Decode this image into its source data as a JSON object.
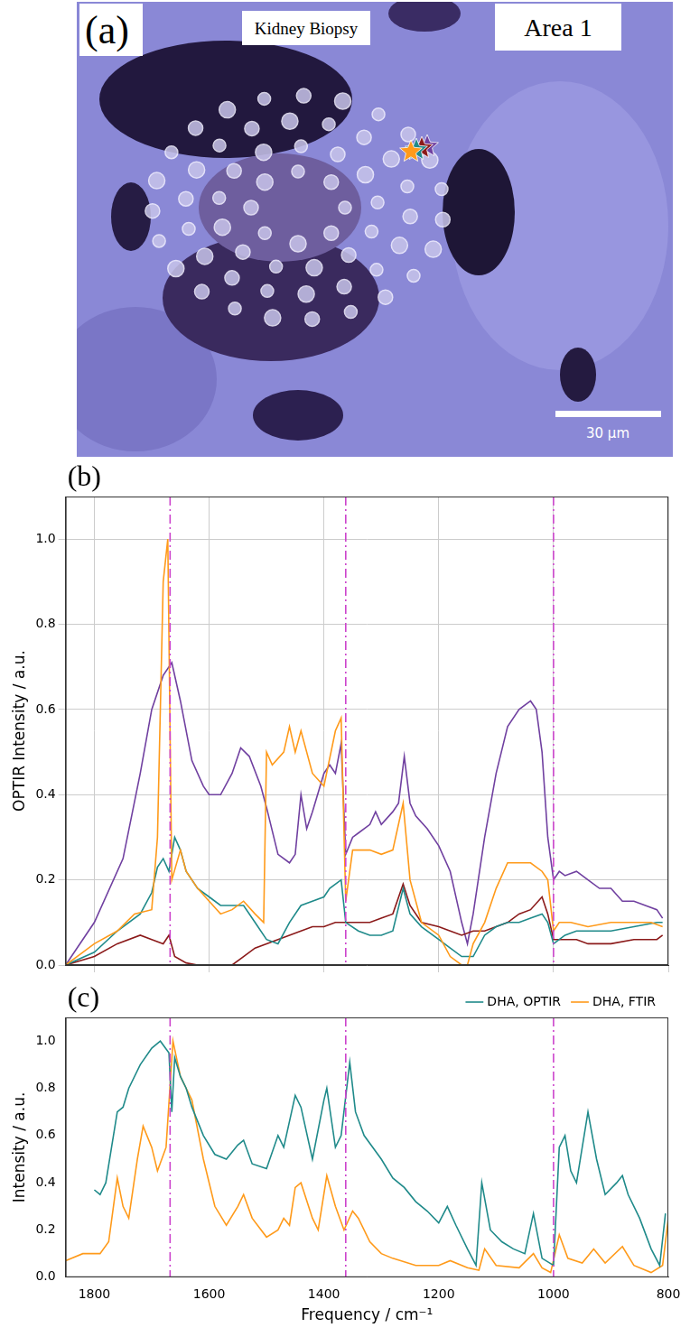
{
  "image_panel": {
    "panel": "(a)",
    "title": "Kidney Biopsy",
    "area": "Area 1",
    "scale_bar": "30 μm"
  },
  "chart_data": [
    {
      "type": "line",
      "panel": "(b)",
      "y_label": "OPTIR Intensity / a.u.",
      "xlim": [
        1850,
        800
      ],
      "xticks": [
        1800,
        1600,
        1400,
        1200,
        1000,
        800
      ],
      "ylim": [
        0,
        1.1
      ],
      "yticks": [
        {
          "value": 0,
          "label": "0.0"
        },
        {
          "value": 0.2,
          "label": "0.2"
        },
        {
          "value": 0.4,
          "label": "0.4"
        },
        {
          "value": 0.6,
          "label": "0.6"
        },
        {
          "value": 0.8,
          "label": "0.8"
        },
        {
          "value": 1,
          "label": "1.0"
        }
      ],
      "grid": true,
      "tick_labels": "y",
      "reference_lines": {
        "x": [
          1668,
          1362,
          1000
        ],
        "color": "#cc44cc",
        "line_style": "dashdot"
      },
      "series": [
        {
          "color": "#ff9a1a",
          "x": [
            1850,
            1820,
            1800,
            1760,
            1730,
            1700,
            1690,
            1680,
            1672,
            1665,
            1650,
            1640,
            1620,
            1600,
            1580,
            1560,
            1540,
            1520,
            1505,
            1500,
            1490,
            1470,
            1460,
            1450,
            1440,
            1420,
            1400,
            1380,
            1370,
            1362,
            1350,
            1320,
            1300,
            1280,
            1262,
            1250,
            1230,
            1200,
            1180,
            1160,
            1150,
            1140,
            1120,
            1100,
            1080,
            1060,
            1040,
            1020,
            1010,
            1000,
            990,
            970,
            940,
            900,
            860,
            830,
            810
          ],
          "values": [
            0.0,
            0.03,
            0.05,
            0.08,
            0.12,
            0.13,
            0.3,
            0.9,
            1.0,
            0.2,
            0.27,
            0.22,
            0.18,
            0.15,
            0.12,
            0.13,
            0.15,
            0.12,
            0.1,
            0.5,
            0.47,
            0.5,
            0.56,
            0.5,
            0.55,
            0.45,
            0.42,
            0.55,
            0.58,
            0.15,
            0.27,
            0.27,
            0.26,
            0.27,
            0.38,
            0.2,
            0.1,
            0.07,
            0.02,
            0.0,
            0.0,
            0.05,
            0.1,
            0.18,
            0.24,
            0.24,
            0.24,
            0.22,
            0.2,
            0.08,
            0.1,
            0.1,
            0.09,
            0.1,
            0.1,
            0.1,
            0.09
          ]
        },
        {
          "color": "#1f8a8a",
          "x": [
            1850,
            1800,
            1760,
            1720,
            1700,
            1690,
            1680,
            1670,
            1660,
            1650,
            1640,
            1620,
            1600,
            1580,
            1560,
            1540,
            1520,
            1500,
            1480,
            1460,
            1440,
            1420,
            1400,
            1390,
            1370,
            1362,
            1340,
            1320,
            1300,
            1280,
            1262,
            1250,
            1230,
            1200,
            1180,
            1160,
            1140,
            1120,
            1100,
            1080,
            1060,
            1040,
            1020,
            1010,
            1000,
            980,
            960,
            940,
            900,
            860,
            820,
            810
          ],
          "values": [
            0.0,
            0.03,
            0.08,
            0.12,
            0.17,
            0.23,
            0.25,
            0.22,
            0.3,
            0.27,
            0.22,
            0.18,
            0.16,
            0.14,
            0.14,
            0.14,
            0.1,
            0.06,
            0.05,
            0.1,
            0.14,
            0.15,
            0.16,
            0.18,
            0.2,
            0.1,
            0.08,
            0.07,
            0.07,
            0.08,
            0.18,
            0.12,
            0.09,
            0.06,
            0.04,
            0.02,
            0.02,
            0.07,
            0.09,
            0.1,
            0.1,
            0.11,
            0.12,
            0.1,
            0.05,
            0.07,
            0.08,
            0.08,
            0.08,
            0.09,
            0.1,
            0.1
          ]
        },
        {
          "color": "#8b1a1a",
          "x": [
            1850,
            1800,
            1760,
            1720,
            1700,
            1680,
            1670,
            1660,
            1640,
            1620,
            1600,
            1580,
            1560,
            1540,
            1520,
            1500,
            1480,
            1460,
            1440,
            1420,
            1400,
            1380,
            1362,
            1340,
            1320,
            1300,
            1280,
            1262,
            1250,
            1230,
            1200,
            1180,
            1160,
            1140,
            1120,
            1100,
            1080,
            1060,
            1040,
            1020,
            1010,
            1000,
            980,
            960,
            940,
            900,
            860,
            820,
            810
          ],
          "values": [
            0.0,
            0.02,
            0.05,
            0.07,
            0.06,
            0.05,
            0.07,
            0.02,
            0.005,
            0.0,
            0.0,
            0.0,
            0.0,
            0.02,
            0.04,
            0.05,
            0.06,
            0.07,
            0.08,
            0.09,
            0.09,
            0.1,
            0.1,
            0.1,
            0.1,
            0.11,
            0.12,
            0.19,
            0.14,
            0.1,
            0.09,
            0.08,
            0.07,
            0.08,
            0.08,
            0.09,
            0.1,
            0.12,
            0.13,
            0.16,
            0.12,
            0.06,
            0.06,
            0.06,
            0.05,
            0.05,
            0.06,
            0.06,
            0.07
          ]
        },
        {
          "color": "#7040a0",
          "x": [
            1850,
            1800,
            1750,
            1720,
            1700,
            1680,
            1665,
            1650,
            1630,
            1610,
            1600,
            1580,
            1560,
            1545,
            1530,
            1510,
            1500,
            1480,
            1460,
            1450,
            1440,
            1430,
            1420,
            1400,
            1390,
            1380,
            1370,
            1362,
            1350,
            1340,
            1320,
            1310,
            1300,
            1280,
            1270,
            1260,
            1250,
            1240,
            1220,
            1200,
            1180,
            1160,
            1150,
            1140,
            1120,
            1100,
            1080,
            1060,
            1040,
            1030,
            1020,
            1010,
            1000,
            990,
            980,
            960,
            940,
            920,
            900,
            880,
            860,
            840,
            820,
            810
          ],
          "values": [
            0.0,
            0.1,
            0.25,
            0.45,
            0.6,
            0.68,
            0.71,
            0.62,
            0.48,
            0.42,
            0.4,
            0.4,
            0.45,
            0.51,
            0.49,
            0.42,
            0.37,
            0.26,
            0.24,
            0.26,
            0.4,
            0.32,
            0.36,
            0.45,
            0.47,
            0.45,
            0.52,
            0.26,
            0.3,
            0.31,
            0.33,
            0.36,
            0.33,
            0.36,
            0.38,
            0.49,
            0.38,
            0.35,
            0.32,
            0.28,
            0.22,
            0.1,
            0.05,
            0.12,
            0.3,
            0.45,
            0.56,
            0.6,
            0.62,
            0.6,
            0.5,
            0.3,
            0.2,
            0.22,
            0.21,
            0.22,
            0.2,
            0.18,
            0.18,
            0.15,
            0.15,
            0.14,
            0.13,
            0.11
          ]
        }
      ]
    },
    {
      "type": "line",
      "panel": "(c)",
      "x_label": "Frequency / cm⁻¹",
      "y_label": "Intensity / a.u.",
      "xlim": [
        1850,
        800
      ],
      "xticks": [
        1800,
        1600,
        1400,
        1200,
        1000,
        800
      ],
      "ylim": [
        0,
        1.1
      ],
      "yticks": [
        {
          "value": 0,
          "label": "0.0"
        },
        {
          "value": 0.2,
          "label": "0.2"
        },
        {
          "value": 0.4,
          "label": "0.4"
        },
        {
          "value": 0.6,
          "label": "0.6"
        },
        {
          "value": 0.8,
          "label": "0.8"
        },
        {
          "value": 1,
          "label": "1.0"
        }
      ],
      "grid": false,
      "legend": "top",
      "reference_lines": {
        "x": [
          1668,
          1362,
          1000
        ],
        "color": "#cc44cc",
        "line_style": "dashdot"
      },
      "series": [
        {
          "name": "DHA, OPTIR",
          "color": "#1f8a8a",
          "x": [
            1800,
            1790,
            1780,
            1770,
            1760,
            1750,
            1740,
            1720,
            1700,
            1685,
            1670,
            1665,
            1660,
            1650,
            1640,
            1630,
            1610,
            1590,
            1570,
            1550,
            1540,
            1525,
            1500,
            1480,
            1470,
            1450,
            1440,
            1420,
            1400,
            1395,
            1380,
            1370,
            1355,
            1345,
            1330,
            1300,
            1280,
            1260,
            1240,
            1220,
            1200,
            1185,
            1170,
            1150,
            1135,
            1125,
            1110,
            1090,
            1070,
            1050,
            1035,
            1020,
            1000,
            990,
            980,
            970,
            960,
            940,
            925,
            910,
            890,
            880,
            870,
            850,
            830,
            815,
            805
          ],
          "values": [
            0.37,
            0.35,
            0.4,
            0.55,
            0.7,
            0.72,
            0.8,
            0.9,
            0.97,
            1.0,
            0.95,
            0.7,
            0.93,
            0.85,
            0.8,
            0.72,
            0.6,
            0.52,
            0.5,
            0.56,
            0.58,
            0.48,
            0.46,
            0.6,
            0.55,
            0.77,
            0.72,
            0.5,
            0.75,
            0.8,
            0.55,
            0.6,
            0.91,
            0.7,
            0.6,
            0.5,
            0.42,
            0.38,
            0.32,
            0.28,
            0.23,
            0.3,
            0.22,
            0.12,
            0.05,
            0.4,
            0.2,
            0.15,
            0.12,
            0.1,
            0.27,
            0.08,
            0.05,
            0.55,
            0.6,
            0.45,
            0.4,
            0.7,
            0.5,
            0.35,
            0.4,
            0.43,
            0.35,
            0.25,
            0.12,
            0.05,
            0.27
          ]
        },
        {
          "name": "DHA, FTIR",
          "color": "#ff9a1a",
          "x": [
            1850,
            1820,
            1790,
            1775,
            1760,
            1750,
            1740,
            1725,
            1715,
            1700,
            1690,
            1675,
            1663,
            1650,
            1640,
            1630,
            1610,
            1590,
            1570,
            1550,
            1540,
            1525,
            1500,
            1480,
            1470,
            1460,
            1450,
            1440,
            1420,
            1410,
            1395,
            1380,
            1365,
            1350,
            1340,
            1320,
            1300,
            1280,
            1240,
            1200,
            1180,
            1150,
            1130,
            1120,
            1100,
            1060,
            1035,
            1020,
            1005,
            990,
            975,
            950,
            930,
            910,
            880,
            860,
            830,
            810,
            800
          ],
          "values": [
            0.07,
            0.1,
            0.1,
            0.15,
            0.42,
            0.3,
            0.25,
            0.5,
            0.64,
            0.55,
            0.45,
            0.55,
            1.0,
            0.85,
            0.8,
            0.75,
            0.5,
            0.3,
            0.22,
            0.3,
            0.35,
            0.25,
            0.17,
            0.2,
            0.25,
            0.22,
            0.38,
            0.4,
            0.25,
            0.2,
            0.43,
            0.3,
            0.2,
            0.28,
            0.25,
            0.15,
            0.1,
            0.08,
            0.05,
            0.05,
            0.07,
            0.04,
            0.03,
            0.12,
            0.05,
            0.04,
            0.1,
            0.04,
            0.02,
            0.18,
            0.08,
            0.06,
            0.12,
            0.06,
            0.13,
            0.05,
            0.02,
            0.05,
            0.25
          ]
        }
      ]
    }
  ]
}
